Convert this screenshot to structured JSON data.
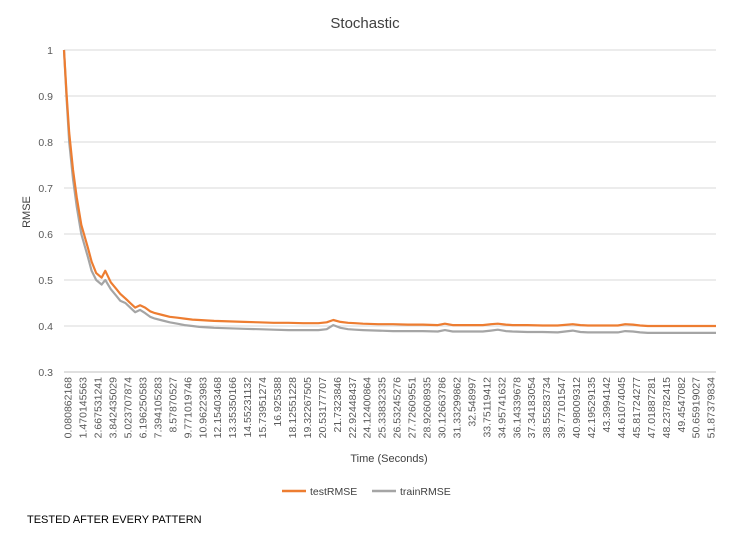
{
  "chart_data": {
    "type": "line",
    "title": "Stochastic",
    "xlabel": "Time (Seconds)",
    "ylabel": "RMSE",
    "ylim": [
      0.3,
      1
    ],
    "y_ticks": [
      "0.3",
      "0.4",
      "0.5",
      "0.6",
      "0.7",
      "0.8",
      "0.9",
      "1"
    ],
    "x_tick_labels": [
      "0.080862168",
      "1.470145563",
      "2.667531241",
      "3.842435029",
      "5.023707874",
      "6.196250583",
      "7.394105283",
      "8.57870527",
      "9.771019746",
      "10.96223983",
      "12.15403468",
      "13.35350166",
      "14.55231132",
      "15.73951274",
      "16.925388",
      "18.12551228",
      "19.32267505",
      "20.53177707",
      "21.7323846",
      "22.92448437",
      "24.12400864",
      "25.33832335",
      "26.53245276",
      "27.72609551",
      "28.92608935",
      "30.12663786",
      "31.33299862",
      "32.548997",
      "33.75119412",
      "34.95741632",
      "36.14339678",
      "37.34183054",
      "38.55283734",
      "39.77101547",
      "40.98009312",
      "42.19529135",
      "43.3994142",
      "44.61074045",
      "45.81724277",
      "47.01887281",
      "48.23782415",
      "49.4547082",
      "50.65919027",
      "51.87379834"
    ],
    "grid": true,
    "legend_position": "bottom",
    "series": [
      {
        "name": "testRMSE",
        "color": "#ED7D31",
        "x": [
          0.08,
          0.3,
          0.5,
          0.8,
          1.1,
          1.47,
          2.0,
          2.3,
          2.67,
          3.1,
          3.4,
          3.84,
          4.3,
          4.6,
          5.02,
          5.4,
          5.8,
          6.2,
          6.6,
          7.0,
          7.39,
          8.0,
          8.58,
          9.2,
          9.77,
          10.4,
          10.96,
          11.6,
          12.15,
          13.35,
          14.55,
          15.74,
          16.93,
          18.13,
          19.32,
          20.53,
          21.2,
          21.73,
          22.3,
          22.92,
          23.5,
          24.12,
          25.34,
          26.53,
          27.73,
          28.93,
          30.13,
          30.7,
          31.33,
          32.55,
          33.75,
          34.4,
          34.96,
          35.6,
          36.14,
          37.34,
          38.55,
          39.77,
          40.98,
          41.6,
          42.2,
          43.4,
          44.61,
          45.2,
          45.82,
          46.4,
          47.02,
          48.24,
          49.45,
          50.66,
          51.87,
          52.5
        ],
        "y": [
          1.0,
          0.9,
          0.82,
          0.74,
          0.68,
          0.62,
          0.57,
          0.54,
          0.515,
          0.505,
          0.52,
          0.495,
          0.48,
          0.47,
          0.46,
          0.45,
          0.44,
          0.445,
          0.44,
          0.432,
          0.428,
          0.424,
          0.42,
          0.418,
          0.416,
          0.414,
          0.413,
          0.412,
          0.411,
          0.41,
          0.409,
          0.408,
          0.407,
          0.407,
          0.406,
          0.406,
          0.408,
          0.413,
          0.409,
          0.407,
          0.406,
          0.405,
          0.404,
          0.404,
          0.403,
          0.403,
          0.402,
          0.405,
          0.402,
          0.402,
          0.402,
          0.404,
          0.405,
          0.403,
          0.402,
          0.402,
          0.401,
          0.401,
          0.404,
          0.402,
          0.401,
          0.401,
          0.401,
          0.404,
          0.403,
          0.401,
          0.4,
          0.4,
          0.4,
          0.4,
          0.4,
          0.4
        ]
      },
      {
        "name": "trainRMSE",
        "color": "#A5A5A5",
        "x": [
          0.08,
          0.3,
          0.5,
          0.8,
          1.1,
          1.47,
          2.0,
          2.3,
          2.67,
          3.1,
          3.4,
          3.84,
          4.3,
          4.6,
          5.02,
          5.4,
          5.8,
          6.2,
          6.6,
          7.0,
          7.39,
          8.0,
          8.58,
          9.2,
          9.77,
          10.4,
          10.96,
          11.6,
          12.15,
          13.35,
          14.55,
          15.74,
          16.93,
          18.13,
          19.32,
          20.53,
          21.2,
          21.73,
          22.3,
          22.92,
          23.5,
          24.12,
          25.34,
          26.53,
          27.73,
          28.93,
          30.13,
          30.7,
          31.33,
          32.55,
          33.75,
          34.4,
          34.96,
          35.6,
          36.14,
          37.34,
          38.55,
          39.77,
          40.98,
          41.6,
          42.2,
          43.4,
          44.61,
          45.2,
          45.82,
          46.4,
          47.02,
          48.24,
          49.45,
          50.66,
          51.87,
          52.5
        ],
        "y": [
          1.0,
          0.89,
          0.8,
          0.72,
          0.66,
          0.6,
          0.55,
          0.52,
          0.5,
          0.49,
          0.5,
          0.48,
          0.465,
          0.455,
          0.45,
          0.44,
          0.43,
          0.435,
          0.428,
          0.42,
          0.416,
          0.412,
          0.408,
          0.405,
          0.402,
          0.4,
          0.398,
          0.397,
          0.396,
          0.395,
          0.394,
          0.393,
          0.392,
          0.391,
          0.391,
          0.391,
          0.393,
          0.402,
          0.396,
          0.393,
          0.392,
          0.391,
          0.39,
          0.389,
          0.389,
          0.389,
          0.388,
          0.391,
          0.388,
          0.388,
          0.388,
          0.39,
          0.392,
          0.389,
          0.388,
          0.387,
          0.387,
          0.386,
          0.39,
          0.387,
          0.386,
          0.386,
          0.386,
          0.389,
          0.388,
          0.386,
          0.385,
          0.385,
          0.385,
          0.385,
          0.385,
          0.385
        ]
      }
    ]
  },
  "footer_text": "TESTED AFTER EVERY PATTERN"
}
